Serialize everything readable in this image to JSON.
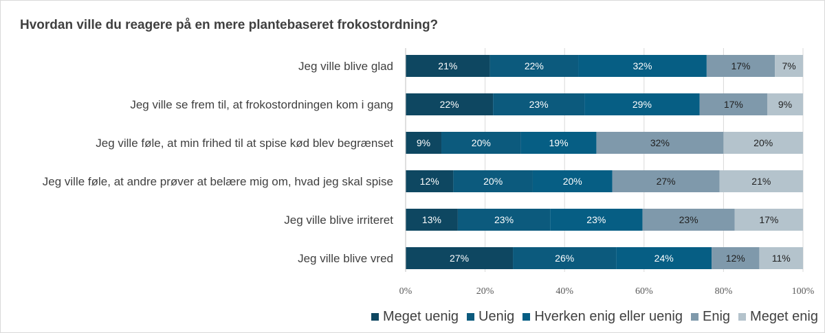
{
  "chart_data": {
    "type": "bar",
    "orientation": "horizontal",
    "stacked": true,
    "title": "Hvordan ville du reagere på en mere plantebaseret frokostordning?",
    "categories": [
      "Jeg ville blive glad",
      "Jeg ville se frem til, at frokostordningen kom i gang",
      "Jeg ville føle, at min frihed til at spise kød blev begrænset",
      "Jeg ville føle, at andre prøver at belære mig om, hvad jeg skal spise",
      "Jeg ville blive irriteret",
      "Jeg ville blive vred"
    ],
    "series": [
      {
        "name": "Meget uenig",
        "color": "#0e4761",
        "text_color": "#ffffff",
        "values": [
          21,
          22,
          9,
          12,
          13,
          27
        ],
        "labels": [
          "21%",
          "22%",
          "9%",
          "12%",
          "13%",
          "27%"
        ]
      },
      {
        "name": "Uenig",
        "color": "#0c5a7d",
        "text_color": "#ffffff",
        "values": [
          22,
          23,
          20,
          20,
          23,
          26
        ],
        "labels": [
          "22%",
          "23%",
          "20%",
          "20%",
          "23%",
          "26%"
        ]
      },
      {
        "name": "Hverken enig eller uenig",
        "color": "#065e84",
        "text_color": "#ffffff",
        "values": [
          32,
          29,
          19,
          20,
          23,
          24
        ],
        "labels": [
          "32%",
          "29%",
          "19%",
          "20%",
          "23%",
          "24%"
        ]
      },
      {
        "name": "Enig",
        "color": "#7f99ab",
        "text_color": "#1f1f1f",
        "values": [
          17,
          17,
          32,
          27,
          23,
          12
        ],
        "labels": [
          "17%",
          "17%",
          "32%",
          "27%",
          "23%",
          "12%"
        ]
      },
      {
        "name": "Meget enig",
        "color": "#b4c3cc",
        "text_color": "#1f1f1f",
        "values": [
          7,
          9,
          20,
          21,
          17,
          11
        ],
        "labels": [
          "7%",
          "9%",
          "20%",
          "21%",
          "17%",
          "11%"
        ]
      }
    ],
    "x_ticks": [
      "0%",
      "20%",
      "40%",
      "60%",
      "80%",
      "100%"
    ],
    "xlim": [
      0,
      100
    ],
    "grid": true,
    "legend_position": "bottom-right"
  }
}
